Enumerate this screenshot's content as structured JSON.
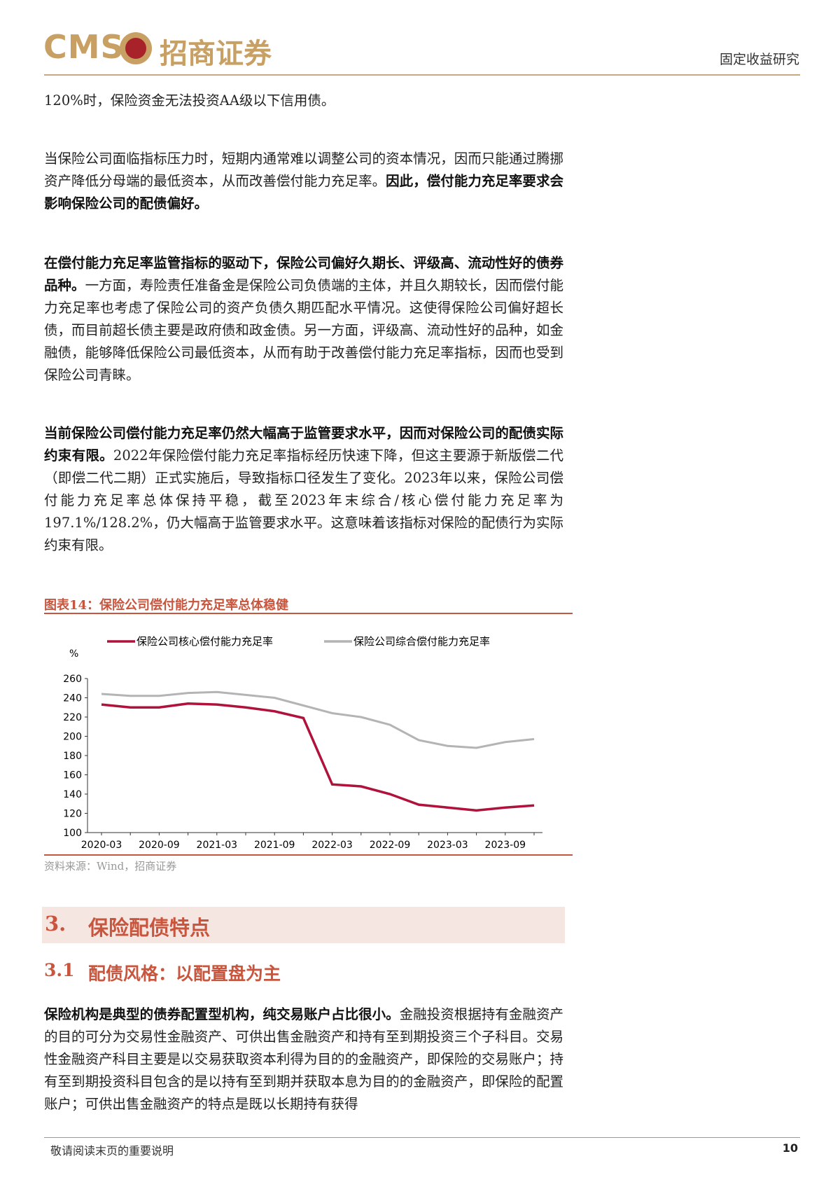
{
  "header": {
    "logo_text": "CMS",
    "company": "招商证券",
    "section": "固定收益研究"
  },
  "paragraphs": [
    {
      "spans": [
        {
          "text": "120%时，保险资金无法投资AA级以下信用债。",
          "bold": false
        }
      ]
    },
    {
      "spans": [
        {
          "text": "当保险公司面临指标压力时，短期内通常难以调整公司的资本情况，因而只能通过腾挪资产降低分母端的最低资本，从而改善偿付能力充足率。",
          "bold": false
        },
        {
          "text": "因此，偿付能力充足率要求会影响保险公司的配债偏好。",
          "bold": true
        }
      ]
    },
    {
      "spans": [
        {
          "text": "在偿付能力充足率监管指标的驱动下，保险公司偏好久期长、评级高、流动性好的债券品种。",
          "bold": true
        },
        {
          "text": "一方面，寿险责任准备金是保险公司负债端的主体，并且久期较长，因而偿付能力充足率也考虑了保险公司的资产负债久期匹配水平情况。这使得保险公司偏好超长债，而目前超长债主要是政府债和政金债。另一方面，评级高、流动性好的品种，如金融债，能够降低保险公司最低资本，从而有助于改善偿付能力充足率指标，因而也受到保险公司青睐。",
          "bold": false
        }
      ]
    },
    {
      "spans": [
        {
          "text": "当前保险公司偿付能力充足率仍然大幅高于监管要求水平，因而对保险公司的配债实际约束有限。",
          "bold": true
        },
        {
          "text": "2022年保险偿付能力充足率指标经历快速下降，但这主要源于新版偿二代（即偿二代二期）正式实施后，导致指标口径发生了变化。2023年以来，保险公司偿付能力充足率总体保持平稳，截至2023年末综合/核心偿付能力充足率为197.1%/128.2%，仍大幅高于监管要求水平。这意味着该指标对保险的配债行为实际约束有限。",
          "bold": false
        }
      ]
    }
  ],
  "figure": {
    "title": "图表14：保险公司偿付能力充足率总体稳健",
    "source": "资料来源：Wind，招商证券"
  },
  "chart_data": {
    "type": "line",
    "y_unit": "%",
    "categories": [
      "2020-03",
      null,
      "2020-09",
      null,
      "2021-03",
      null,
      "2021-09",
      null,
      "2022-03",
      null,
      "2022-09",
      null,
      "2023-03",
      null,
      "2023-09",
      null
    ],
    "series": [
      {
        "name": "保险公司核心偿付能力充足率",
        "color": "#b0123b",
        "values": [
          233,
          230,
          230,
          234,
          233,
          230,
          226,
          219,
          150,
          148,
          140,
          129,
          126,
          123,
          126,
          128.2
        ]
      },
      {
        "name": "保险公司综合偿付能力充足率",
        "color": "#b4b4b4",
        "values": [
          244,
          242,
          242,
          245,
          246,
          243,
          240,
          232,
          224,
          220,
          212,
          196,
          190,
          188,
          194,
          197.1
        ]
      }
    ],
    "ylim": [
      100,
      260
    ],
    "yticks": [
      100,
      120,
      140,
      160,
      180,
      200,
      220,
      240,
      260
    ],
    "legend": "top"
  },
  "section": {
    "number": "3.",
    "title": "保险配债特点"
  },
  "subsection": {
    "number": "3.1",
    "title": "配债风格：以配置盘为主"
  },
  "last_paragraph": {
    "spans": [
      {
        "text": "保险机构是典型的债券配置型机构，纯交易账户占比很小。",
        "bold": true
      },
      {
        "text": "金融投资根据持有金融资产的目的可分为交易性金融资产、可供出售金融资产和持有至到期投资三个子科目。交易性金融资产科目主要是以交易获取资本利得为目的的金融资产，即保险的交易账户；持有至到期投资科目包含的是以持有至到期并获取本息为目的的金融资产，即保险的配置账户；可供出售金融资产的特点是既以长期持有获得",
        "bold": false
      }
    ]
  },
  "footer": {
    "note": "敬请阅读末页的重要说明",
    "page": "10"
  }
}
